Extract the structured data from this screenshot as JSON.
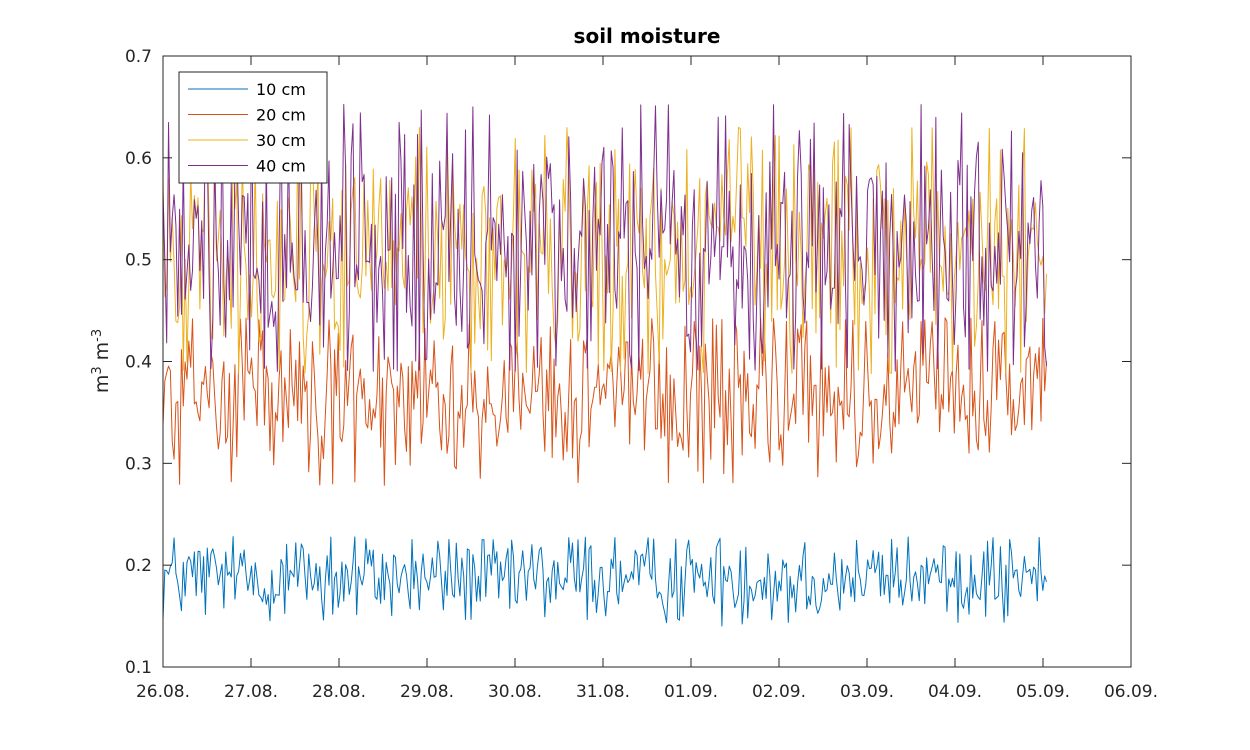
{
  "chart_data": {
    "type": "line",
    "title": "soil moisture",
    "xlabel": "",
    "ylabel": {
      "base": "m",
      "sup1": "3",
      "mid": " m",
      "sup2": "-3"
    },
    "x_tick_labels": [
      "26.08.",
      "27.08.",
      "28.08.",
      "29.08.",
      "30.08.",
      "31.08.",
      "01.09.",
      "02.09.",
      "03.09.",
      "04.09.",
      "05.09.",
      "06.09."
    ],
    "y_tick_labels": [
      "0.1",
      "0.2",
      "0.3",
      "0.4",
      "0.5",
      "0.6",
      "0.7"
    ],
    "xlim_days": [
      0,
      11
    ],
    "ylim": [
      0.1,
      0.7
    ],
    "grid": false,
    "legend_position": "top-left",
    "series_time_range_days": [
      0,
      10.04
    ],
    "points_per_series": 480,
    "series": [
      {
        "name": "10 cm",
        "color": "#0072BD",
        "mean": 0.188,
        "min": 0.14,
        "max": 0.228
      },
      {
        "name": "20 cm",
        "color": "#D95319",
        "mean": 0.368,
        "min": 0.278,
        "max": 0.443
      },
      {
        "name": "30 cm",
        "color": "#EDB120",
        "mean": 0.51,
        "min": 0.388,
        "max": 0.63
      },
      {
        "name": "40 cm",
        "color": "#7E2F8E",
        "mean": 0.51,
        "min": 0.39,
        "max": 0.654
      }
    ]
  }
}
